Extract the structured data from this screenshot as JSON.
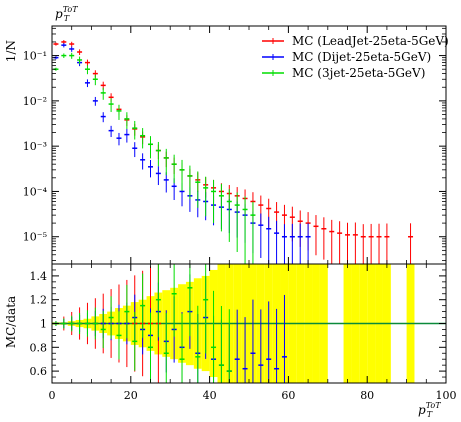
{
  "chart_data": [
    {
      "type": "scatter",
      "panel": "main",
      "ylabel": "1/N",
      "annotation": "p_T^ToT",
      "yscale": "log",
      "xlim": [
        0,
        100
      ],
      "ylim": [
        2.5e-06,
        0.45
      ],
      "y_ticks": [
        "10⁻⁵",
        "10⁻⁴",
        "10⁻³",
        "10⁻²",
        "10⁻¹"
      ],
      "legend_position": "top-right",
      "series": [
        {
          "name": "MC (LeadJet-25eta-5GeV)",
          "color": "#ff0000",
          "x": [
            1,
            3,
            5,
            7,
            9,
            11,
            13,
            15,
            17,
            19,
            21,
            23,
            25,
            27,
            29,
            31,
            33,
            35,
            37,
            39,
            41,
            43,
            45,
            47,
            49,
            51,
            53,
            55,
            57,
            59,
            61,
            63,
            65,
            67,
            69,
            71,
            73,
            75,
            77,
            79,
            81,
            83,
            85,
            91
          ],
          "y": [
            0.18,
            0.2,
            0.18,
            0.12,
            0.07,
            0.04,
            0.022,
            0.012,
            0.0065,
            0.0038,
            0.0024,
            0.0016,
            0.0011,
            0.0008,
            0.00055,
            0.0004,
            0.0003,
            0.00022,
            0.00018,
            0.00014,
            0.00012,
            0.0001,
            9e-05,
            8e-05,
            7e-05,
            6e-05,
            5e-05,
            4.2e-05,
            3.5e-05,
            3e-05,
            2.7e-05,
            2.2e-05,
            2e-05,
            1.7e-05,
            1.5e-05,
            1.3e-05,
            1.2e-05,
            1.1e-05,
            1.1e-05,
            1e-05,
            1e-05,
            1e-05,
            1e-05,
            1e-05
          ]
        },
        {
          "name": "MC (Dijet-25eta-5GeV)",
          "color": "#0000ff",
          "x": [
            1,
            3,
            5,
            7,
            9,
            11,
            13,
            15,
            17,
            19,
            21,
            23,
            25,
            27,
            29,
            31,
            33,
            35,
            37,
            39,
            41,
            43,
            45,
            47,
            49,
            51,
            53,
            55,
            57,
            59,
            61,
            63,
            65
          ],
          "y": [
            0.09,
            0.17,
            0.14,
            0.07,
            0.025,
            0.01,
            0.0045,
            0.0022,
            0.0015,
            0.0018,
            0.0009,
            0.0005,
            0.00035,
            0.00025,
            0.00018,
            0.00013,
            0.0001,
            8e-05,
            6.5e-05,
            6e-05,
            5e-05,
            4.5e-05,
            4e-05,
            3.5e-05,
            3e-05,
            2e-05,
            1.8e-05,
            1.5e-05,
            1.2e-05,
            1e-05,
            1e-05,
            1e-05,
            1e-05
          ]
        },
        {
          "name": "MC (3jet-25eta-5GeV)",
          "color": "#00dd00",
          "x": [
            1,
            3,
            5,
            7,
            9,
            11,
            13,
            15,
            17,
            19,
            21,
            23,
            25,
            27,
            29,
            31,
            33,
            35,
            37,
            39,
            41,
            43,
            45,
            47,
            49,
            51
          ],
          "y": [
            0.05,
            0.1,
            0.1,
            0.08,
            0.05,
            0.03,
            0.015,
            0.0085,
            0.006,
            0.004,
            0.0025,
            0.0017,
            0.0011,
            0.0008,
            0.00055,
            0.0004,
            0.0003,
            0.00022,
            0.00016,
            0.00012,
            0.0001,
            8e-05,
            6e-05,
            5e-05,
            4e-05,
            3e-05
          ]
        }
      ]
    },
    {
      "type": "scatter",
      "panel": "ratio",
      "ylabel": "MC/data",
      "xlabel": "p_T^ToT",
      "xlim": [
        0,
        100
      ],
      "ylim": [
        0.5,
        1.5
      ],
      "x_ticks": [
        "0",
        "20",
        "40",
        "60",
        "80",
        "100"
      ],
      "y_ticks": [
        "0.6",
        "0.8",
        "1",
        "1.2",
        "1.4"
      ],
      "reference_line": 1.0,
      "uncertainty_band": {
        "color": "#ffff00",
        "x": [
          1,
          3,
          5,
          7,
          9,
          11,
          13,
          15,
          17,
          19,
          21,
          23,
          25,
          27,
          29,
          31,
          33,
          35,
          37,
          39,
          41,
          43,
          45,
          47,
          49,
          51,
          53,
          55,
          57,
          59,
          61,
          63,
          65,
          67,
          69,
          75,
          77,
          79,
          81,
          83,
          85,
          91
        ],
        "half_width": [
          0.01,
          0.01,
          0.02,
          0.03,
          0.04,
          0.06,
          0.08,
          0.1,
          0.13,
          0.15,
          0.18,
          0.2,
          0.23,
          0.26,
          0.28,
          0.3,
          0.33,
          0.35,
          0.38,
          0.4,
          0.45,
          0.5,
          0.5,
          0.5,
          0.5,
          0.5,
          0.5,
          0.5,
          0.5,
          0.5,
          0.5,
          0.5,
          0.5,
          0.5,
          0.5,
          0.5,
          0.5,
          0.5,
          0.5,
          0.5,
          0.5,
          0.5
        ]
      },
      "series": [
        {
          "color": "#ff0000",
          "x": [
            1,
            3,
            5,
            7,
            9,
            11,
            13,
            15,
            17,
            19,
            21,
            23,
            25,
            27
          ],
          "y": [
            1,
            1,
            1,
            1,
            1,
            1,
            1,
            1,
            1,
            1,
            1,
            1,
            1,
            1
          ]
        },
        {
          "color": "#0000ff",
          "x": [
            1,
            3,
            5,
            7,
            9,
            11,
            13,
            15,
            17,
            19,
            21,
            23,
            25,
            27,
            29,
            31,
            33,
            35,
            37,
            39,
            41,
            43,
            45,
            47,
            49,
            51,
            53,
            55,
            57,
            59
          ],
          "y": [
            1,
            1,
            1,
            1,
            1,
            1,
            1,
            1,
            1,
            1,
            1.05,
            0.95,
            0.9,
            1.1,
            0.85,
            0.95,
            0.8,
            1.1,
            0.75,
            1.05,
            0.7,
            0.65,
            0.6,
            0.7,
            0.62,
            0.75,
            0.65,
            0.7,
            0.62,
            0.72
          ]
        },
        {
          "color": "#00dd00",
          "x": [
            1,
            3,
            5,
            7,
            9,
            11,
            13,
            15,
            17,
            19,
            21,
            23,
            25,
            27,
            29,
            31,
            33,
            35,
            37,
            39,
            41,
            43,
            45
          ],
          "y": [
            1,
            1,
            1,
            1,
            1,
            1.0,
            0.95,
            1.05,
            0.9,
            1.1,
            0.85,
            1.15,
            0.8,
            1.2,
            0.75,
            1.25,
            0.7,
            1.3,
            0.72,
            1.2,
            0.8,
            0.65,
            0.6
          ]
        }
      ]
    }
  ]
}
